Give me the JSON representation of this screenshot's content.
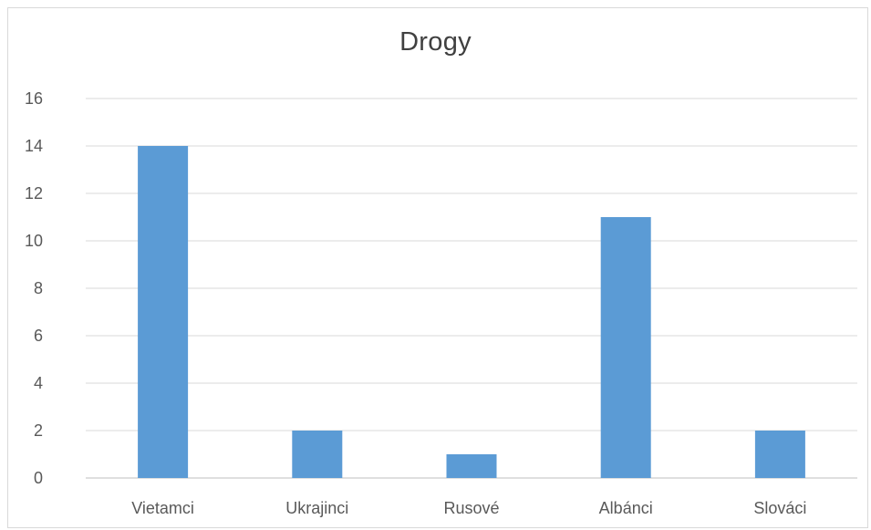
{
  "chart_data": {
    "type": "bar",
    "title": "Drogy",
    "categories": [
      "Vietamci",
      "Ukrajinci",
      "Rusové",
      "Albánci",
      "Slováci"
    ],
    "values": [
      14,
      2,
      1,
      11,
      2
    ],
    "yticks": [
      "0",
      "2",
      "4",
      "6",
      "8",
      "10",
      "12",
      "14",
      "16"
    ],
    "ylim": [
      0,
      16
    ],
    "grid": true,
    "legend": "none",
    "colors": {
      "bar": "#5b9bd5",
      "grid": "#d9d9d9",
      "axis": "#bfbfbf",
      "text": "#595959",
      "title": "#404040"
    }
  }
}
